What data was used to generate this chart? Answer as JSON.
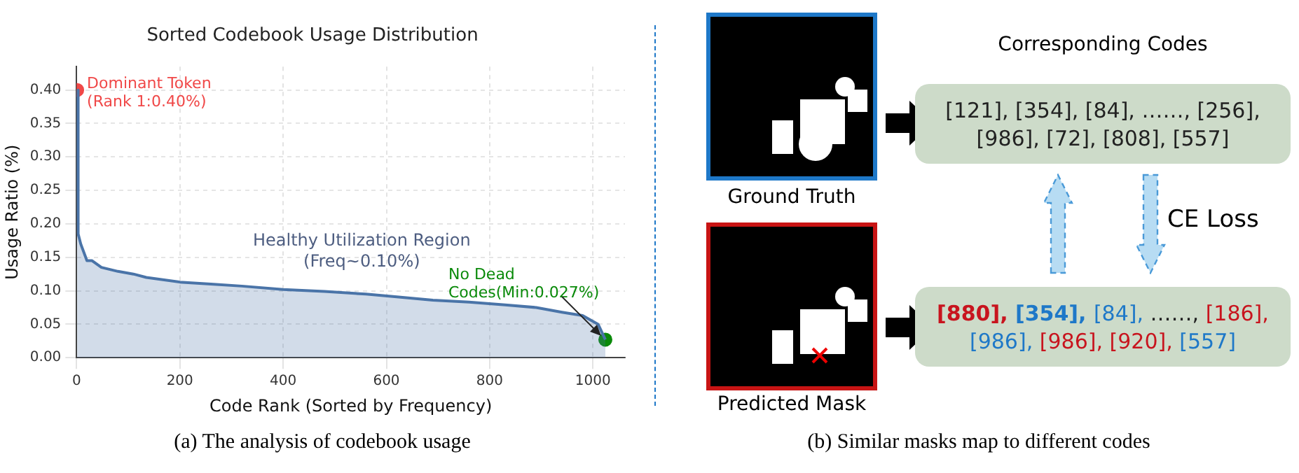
{
  "chart_data": [
    {
      "type": "area",
      "title": "Sorted Codebook Usage Distribution",
      "xlabel": "Code Rank (Sorted by Frequency)",
      "ylabel": "Usage Ratio (%)",
      "xlim": [
        0,
        1062
      ],
      "xticks": [
        0,
        200,
        400,
        600,
        800,
        1000
      ],
      "ylim": [
        0,
        0.435
      ],
      "yticks": [
        {
          "value": 0,
          "label": "0.00"
        },
        0.05,
        {
          "value": 0.1,
          "label": "0.10"
        },
        0.15,
        {
          "value": 0.2,
          "label": "0.20"
        },
        0.25,
        {
          "value": 0.3,
          "label": "0.30"
        },
        0.35,
        {
          "value": 0.4,
          "label": "0.40"
        }
      ],
      "grid": true,
      "series": [
        {
          "color": "#4a74a8",
          "x": [
            1,
            3,
            8,
            20,
            30,
            48,
            80,
            110,
            135,
            200,
            260,
            320,
            400,
            480,
            560,
            620,
            690,
            760,
            830,
            890,
            940,
            980,
            1010,
            1024
          ],
          "values": [
            0.4,
            0.185,
            0.17,
            0.145,
            0.145,
            0.135,
            0.129,
            0.125,
            0.12,
            0.113,
            0.11,
            0.107,
            0.102,
            0.099,
            0.095,
            0.091,
            0.086,
            0.083,
            0.079,
            0.075,
            0.068,
            0.063,
            0.05,
            0.027
          ]
        },
        {
          "type": "scatter",
          "color": "#f04848",
          "x": [
            1
          ],
          "values": [
            0.4
          ]
        },
        {
          "type": "scatter",
          "color": "#0a8a0a",
          "x": [
            1024
          ],
          "values": [
            0.027
          ]
        }
      ],
      "annotations": [
        {
          "text": "Dominant Token\n(Rank 1:0.40%)",
          "x": 1,
          "y": 0.4
        },
        "Healthy Utilization Region\n(Freq~0.10%)",
        {
          "text": "No Dead\nCodes(Min:0.027%)",
          "x": 1024,
          "y": 0.027
        },
        "(a) The analysis of codebook usage"
      ]
    },
    {
      "type": "other",
      "title": "Corresponding Codes",
      "annotations": [
        "[121], [354], [84], ……, [256], [986], [72], [808], [557]",
        "[880], [354], [84], ……, [186], [986], [986], [920], [557]",
        "Ground Truth",
        "Predicted Mask",
        "CE Loss",
        "(b) Similar masks map to different codes"
      ],
      "colors": [
        "#c8141e",
        "#1e78c8",
        "#1e78c8",
        "#222222",
        "#c8141e",
        "#1e78c8",
        "#c8141e",
        "#c8141e",
        "#1e78c8"
      ]
    }
  ]
}
